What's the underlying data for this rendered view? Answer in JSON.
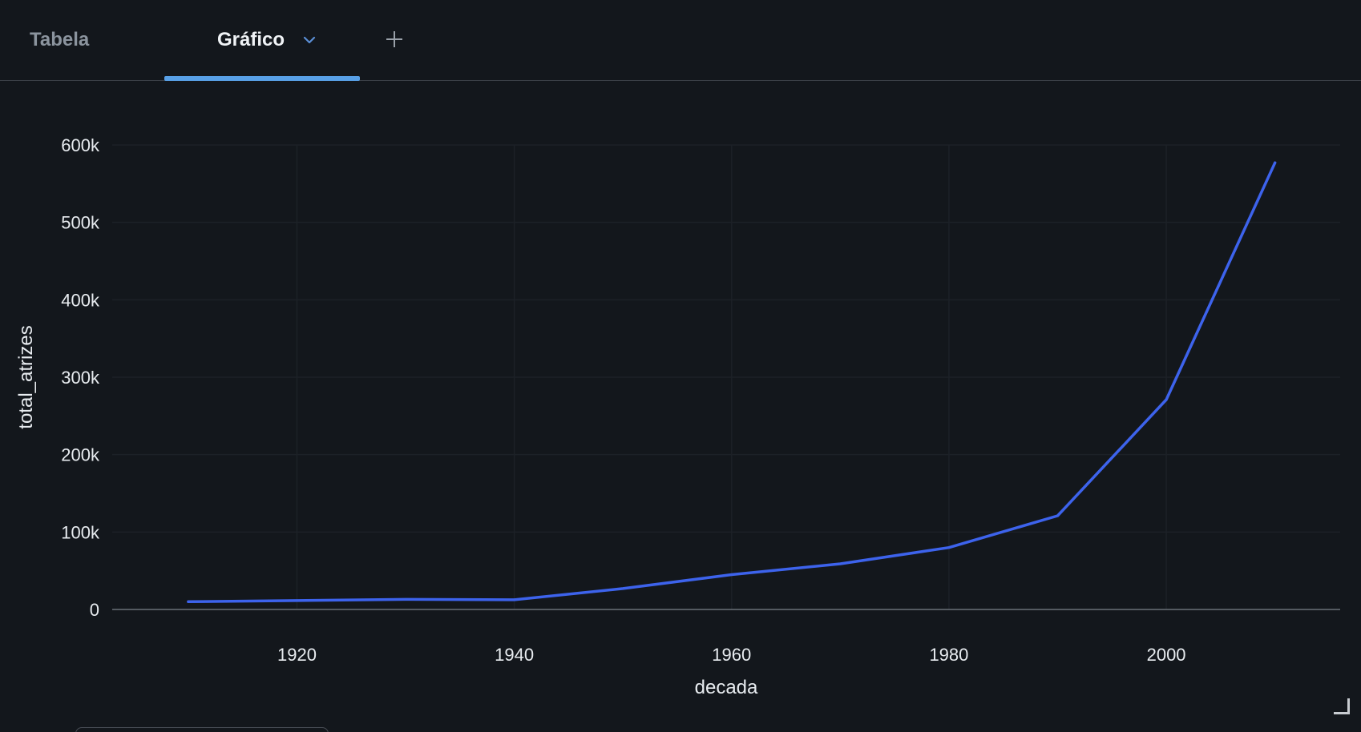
{
  "tabs": [
    {
      "label": "Tabela",
      "active": false
    },
    {
      "label": "Gráfico",
      "active": true
    }
  ],
  "icons": {
    "tab_dropdown": "chevron-down-icon",
    "add_tab": "plus-icon",
    "resize": "resize-corner-icon"
  },
  "colors": {
    "background": "#13171c",
    "active_tab_underline": "#58a0e6",
    "series_line": "#3d63ec",
    "chevron": "#5b8fd6"
  },
  "chart_data": {
    "type": "line",
    "title": "",
    "xlabel": "decada",
    "ylabel": "total_atrizes",
    "xlim": [
      1903,
      2016
    ],
    "ylim": [
      0,
      600000
    ],
    "x_ticks": [
      {
        "value": 1920,
        "label": "1920"
      },
      {
        "value": 1940,
        "label": "1940"
      },
      {
        "value": 1960,
        "label": "1960"
      },
      {
        "value": 1980,
        "label": "1980"
      },
      {
        "value": 2000,
        "label": "2000"
      }
    ],
    "y_ticks": [
      {
        "value": 0,
        "label": "0"
      },
      {
        "value": 100000,
        "label": "100k"
      },
      {
        "value": 200000,
        "label": "200k"
      },
      {
        "value": 300000,
        "label": "300k"
      },
      {
        "value": 400000,
        "label": "400k"
      },
      {
        "value": 500000,
        "label": "500k"
      },
      {
        "value": 600000,
        "label": "600k"
      }
    ],
    "grid": true,
    "series": [
      {
        "x": [
          1910,
          1920,
          1930,
          1940,
          1950,
          1960,
          1970,
          1980,
          1990,
          2000,
          2010
        ],
        "y": [
          10000,
          11500,
          13000,
          12500,
          27000,
          45000,
          59000,
          80000,
          121000,
          271000,
          577000
        ]
      }
    ]
  }
}
